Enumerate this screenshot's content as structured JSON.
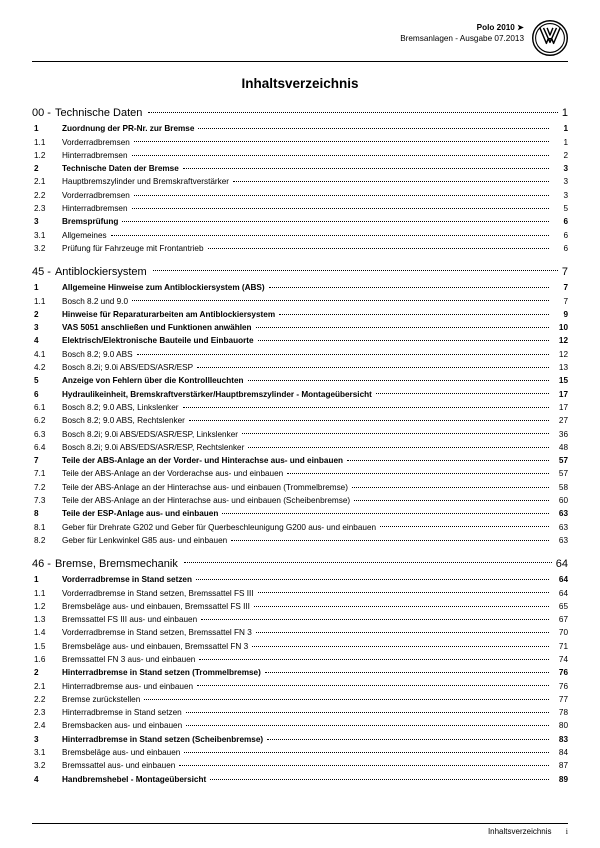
{
  "header": {
    "model": "Polo 2010 ➤",
    "subtitle": "Bremsanlagen - Ausgabe 07.2013"
  },
  "title": "Inhaltsverzeichnis",
  "sections": [
    {
      "num": "00 -",
      "label": "Technische Daten",
      "page": "1",
      "entries": [
        {
          "n": "1",
          "t": "Zuordnung der PR-Nr. zur Bremse",
          "p": "1",
          "b": true
        },
        {
          "n": "1.1",
          "t": "Vorderradbremsen",
          "p": "1"
        },
        {
          "n": "1.2",
          "t": "Hinterradbremsen",
          "p": "2"
        },
        {
          "n": "2",
          "t": "Technische Daten der Bremse",
          "p": "3",
          "b": true
        },
        {
          "n": "2.1",
          "t": "Hauptbremszylinder und Bremskraftverstärker",
          "p": "3"
        },
        {
          "n": "2.2",
          "t": "Vorderradbremsen",
          "p": "3"
        },
        {
          "n": "2.3",
          "t": "Hinterradbremsen",
          "p": "5"
        },
        {
          "n": "3",
          "t": "Bremsprüfung",
          "p": "6",
          "b": true
        },
        {
          "n": "3.1",
          "t": "Allgemeines",
          "p": "6"
        },
        {
          "n": "3.2",
          "t": "Prüfung für Fahrzeuge mit Frontantrieb",
          "p": "6"
        }
      ]
    },
    {
      "num": "45 -",
      "label": "Antiblockiersystem",
      "page": "7",
      "entries": [
        {
          "n": "1",
          "t": "Allgemeine Hinweise zum Antiblockiersystem (ABS)",
          "p": "7",
          "b": true
        },
        {
          "n": "1.1",
          "t": "Bosch 8.2 und 9.0",
          "p": "7"
        },
        {
          "n": "2",
          "t": "Hinweise für Reparaturarbeiten am Antiblockiersystem",
          "p": "9",
          "b": true
        },
        {
          "n": "3",
          "t": "VAS 5051 anschließen und Funktionen anwählen",
          "p": "10",
          "b": true
        },
        {
          "n": "4",
          "t": "Elektrisch/Elektronische Bauteile und Einbauorte",
          "p": "12",
          "b": true
        },
        {
          "n": "4.1",
          "t": "Bosch 8.2; 9.0 ABS",
          "p": "12"
        },
        {
          "n": "4.2",
          "t": "Bosch 8.2i; 9.0i ABS/EDS/ASR/ESP",
          "p": "13"
        },
        {
          "n": "5",
          "t": "Anzeige von Fehlern über die Kontrollleuchten",
          "p": "15",
          "b": true
        },
        {
          "n": "6",
          "t": "Hydraulikeinheit, Bremskraftverstärker/Hauptbremszylinder - Montageübersicht",
          "p": "17",
          "b": true
        },
        {
          "n": "6.1",
          "t": "Bosch 8.2; 9.0 ABS, Linkslenker",
          "p": "17"
        },
        {
          "n": "6.2",
          "t": "Bosch 8.2; 9.0 ABS, Rechtslenker",
          "p": "27"
        },
        {
          "n": "6.3",
          "t": "Bosch 8.2i; 9.0i ABS/EDS/ASR/ESP, Linkslenker",
          "p": "36"
        },
        {
          "n": "6.4",
          "t": "Bosch 8.2i; 9.0i ABS/EDS/ASR/ESP, Rechtslenker",
          "p": "48"
        },
        {
          "n": "7",
          "t": "Teile der ABS-Anlage an der Vorder- und Hinterachse aus- und einbauen",
          "p": "57",
          "b": true
        },
        {
          "n": "7.1",
          "t": "Teile der ABS-Anlage an der Vorderachse aus- und einbauen",
          "p": "57"
        },
        {
          "n": "7.2",
          "t": "Teile der ABS-Anlage an der Hinterachse aus- und einbauen (Trommelbremse)",
          "p": "58"
        },
        {
          "n": "7.3",
          "t": "Teile der ABS-Anlage an der Hinterachse aus- und einbauen (Scheibenbremse)",
          "p": "60"
        },
        {
          "n": "8",
          "t": "Teile der ESP-Anlage aus- und einbauen",
          "p": "63",
          "b": true
        },
        {
          "n": "8.1",
          "t": "Geber für Drehrate G202 und Geber für Querbeschleunigung G200 aus- und einbauen",
          "p": "63"
        },
        {
          "n": "8.2",
          "t": "Geber für Lenkwinkel G85 aus- und einbauen",
          "p": "63"
        }
      ]
    },
    {
      "num": "46 -",
      "label": "Bremse, Bremsmechanik",
      "page": "64",
      "entries": [
        {
          "n": "1",
          "t": "Vorderradbremse in Stand setzen",
          "p": "64",
          "b": true
        },
        {
          "n": "1.1",
          "t": "Vorderradbremse in Stand setzen, Bremssattel FS III",
          "p": "64"
        },
        {
          "n": "1.2",
          "t": "Bremsbeläge aus- und einbauen, Bremssattel FS III",
          "p": "65"
        },
        {
          "n": "1.3",
          "t": "Bremssattel FS III aus- und einbauen",
          "p": "67"
        },
        {
          "n": "1.4",
          "t": "Vorderradbremse in Stand setzen, Bremssattel FN 3",
          "p": "70"
        },
        {
          "n": "1.5",
          "t": "Bremsbeläge aus- und einbauen, Bremssattel FN 3",
          "p": "71"
        },
        {
          "n": "1.6",
          "t": "Bremssattel FN 3 aus- und einbauen",
          "p": "74"
        },
        {
          "n": "2",
          "t": "Hinterradbremse in Stand setzen (Trommelbremse)",
          "p": "76",
          "b": true
        },
        {
          "n": "2.1",
          "t": "Hinterradbremse aus- und einbauen",
          "p": "76"
        },
        {
          "n": "2.2",
          "t": "Bremse zurückstellen",
          "p": "77"
        },
        {
          "n": "2.3",
          "t": "Hinterradbremse in Stand setzen",
          "p": "78"
        },
        {
          "n": "2.4",
          "t": "Bremsbacken aus- und einbauen",
          "p": "80"
        },
        {
          "n": "3",
          "t": "Hinterradbremse in Stand setzen (Scheibenbremse)",
          "p": "83",
          "b": true
        },
        {
          "n": "3.1",
          "t": "Bremsbeläge aus- und einbauen",
          "p": "84"
        },
        {
          "n": "3.2",
          "t": "Bremssattel aus- und einbauen",
          "p": "87"
        },
        {
          "n": "4",
          "t": "Handbremshebel - Montageübersicht",
          "p": "89",
          "b": true
        }
      ]
    }
  ],
  "footer": {
    "label": "Inhaltsverzeichnis",
    "page": "i"
  }
}
